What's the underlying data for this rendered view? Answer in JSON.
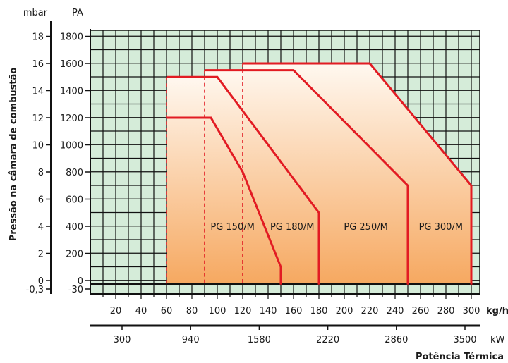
{
  "chart_data": {
    "type": "area",
    "title": "",
    "ylabel": "Pressão na câmara de combustão",
    "y_units": {
      "left": "mbar",
      "right": "PA"
    },
    "x_units": {
      "flow": "kg/h",
      "power": "kW"
    },
    "xlabel": "Potência Térmica",
    "xlim": [
      0,
      305
    ],
    "ylim": [
      -30,
      1900
    ],
    "grid": true,
    "y_ticks_mbar": [
      "18",
      "16",
      "14",
      "12",
      "10",
      "8",
      "6",
      "4",
      "2",
      "0",
      "-0,3"
    ],
    "y_ticks_pa": [
      "1800",
      "1600",
      "1400",
      "1200",
      "1000",
      "800",
      "600",
      "400",
      "200",
      "0",
      "-30"
    ],
    "y_tick_values": [
      1800,
      1600,
      1400,
      1200,
      1000,
      800,
      600,
      400,
      200,
      0,
      -30
    ],
    "x_ticks_flow": [
      "20",
      "40",
      "60",
      "80",
      "100",
      "120",
      "140",
      "160",
      "180",
      "200",
      "220",
      "240",
      "260",
      "280",
      "300"
    ],
    "x_ticks_power": [
      {
        "label": "300",
        "x": 25
      },
      {
        "label": "940",
        "x": 79
      },
      {
        "label": "1580",
        "x": 133
      },
      {
        "label": "2220",
        "x": 187
      },
      {
        "label": "2860",
        "x": 241
      },
      {
        "label": "3500",
        "x": 295
      }
    ],
    "series": [
      {
        "name": "PG 150/M",
        "points": [
          [
            60,
            1200
          ],
          [
            95,
            1200
          ],
          [
            120,
            800
          ],
          [
            150,
            100
          ],
          [
            150,
            -30
          ]
        ]
      },
      {
        "name": "PG 180/M",
        "points": [
          [
            60,
            1500
          ],
          [
            100,
            1500
          ],
          [
            180,
            500
          ],
          [
            180,
            -30
          ]
        ]
      },
      {
        "name": "PG 250/M",
        "points": [
          [
            90,
            1550
          ],
          [
            160,
            1550
          ],
          [
            250,
            700
          ],
          [
            250,
            -30
          ]
        ]
      },
      {
        "name": "PG 300/M",
        "points": [
          [
            120,
            1600
          ],
          [
            220,
            1600
          ],
          [
            300,
            700
          ],
          [
            300,
            -30
          ]
        ]
      }
    ],
    "label_positions": [
      {
        "name": "PG 150/M",
        "x": 112,
        "y": 400
      },
      {
        "name": "PG 180/M",
        "x": 159,
        "y": 400
      },
      {
        "name": "PG 250/M",
        "x": 217,
        "y": 400
      },
      {
        "name": "PG 300/M",
        "x": 276,
        "y": 400
      }
    ],
    "dashed_min_lines": [
      [
        60,
        1500
      ],
      [
        90,
        1550
      ],
      [
        120,
        1600
      ]
    ],
    "colors": {
      "grid_bg": "#d5ecd9",
      "grid_line": "#111111",
      "curve": "#e21b23",
      "fill_top": "#fff8f0",
      "fill_bottom": "#f6a860"
    }
  }
}
